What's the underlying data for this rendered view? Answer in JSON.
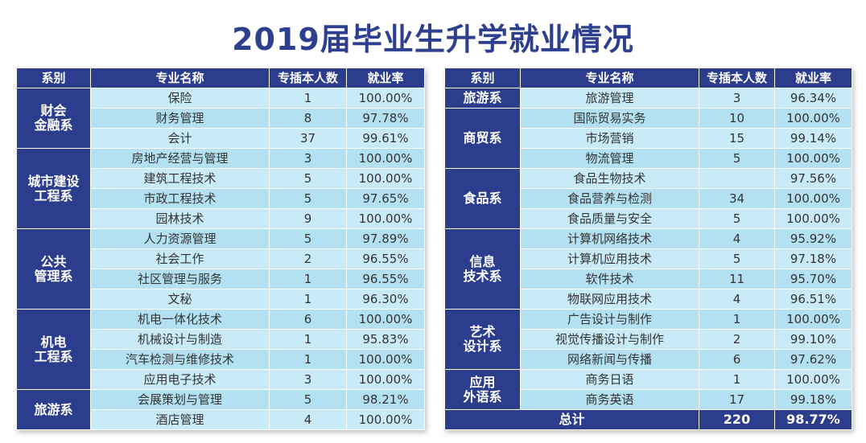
{
  "title": "2019届毕业生升学就业情况",
  "headers": [
    "系别",
    "专业名称",
    "专插本人数",
    "就业率"
  ],
  "left_table": [
    {
      "dept": "财会\n金融系",
      "rows": [
        [
          "保险",
          "1",
          "100.00%"
        ],
        [
          "财务管理",
          "8",
          "97.78%"
        ],
        [
          "会计",
          "37",
          "99.61%"
        ]
      ]
    },
    {
      "dept": "城市建设\n工程系",
      "rows": [
        [
          "房地产经营与管理",
          "3",
          "100.00%"
        ],
        [
          "建筑工程技术",
          "5",
          "100.00%"
        ],
        [
          "市政工程技术",
          "5",
          "97.65%"
        ],
        [
          "园林技术",
          "9",
          "100.00%"
        ]
      ]
    },
    {
      "dept": "公共\n管理系",
      "rows": [
        [
          "人力资源管理",
          "5",
          "97.89%"
        ],
        [
          "社会工作",
          "2",
          "96.55%"
        ],
        [
          "社区管理与服务",
          "1",
          "96.55%"
        ],
        [
          "文秘",
          "1",
          "96.30%"
        ]
      ]
    },
    {
      "dept": "机电\n工程系",
      "rows": [
        [
          "机电一体化技术",
          "6",
          "100.00%"
        ],
        [
          "机械设计与制造",
          "1",
          "95.83%"
        ],
        [
          "汽车检测与维修技术",
          "1",
          "100.00%"
        ],
        [
          "应用电子技术",
          "3",
          "100.00%"
        ]
      ]
    },
    {
      "dept": "旅游系",
      "rows": [
        [
          "会展策划与管理",
          "5",
          "98.21%"
        ],
        [
          "酒店管理",
          "4",
          "100.00%"
        ]
      ]
    }
  ],
  "right_table": [
    {
      "dept": "旅游系",
      "rows": [
        [
          "旅游管理",
          "3",
          "96.34%"
        ]
      ]
    },
    {
      "dept": "商贸系",
      "rows": [
        [
          "国际贸易实务",
          "10",
          "100.00%"
        ],
        [
          "市场营销",
          "15",
          "99.14%"
        ],
        [
          "物流管理",
          "5",
          "100.00%"
        ]
      ]
    },
    {
      "dept": "食品系",
      "rows": [
        [
          "食品生物技术",
          "",
          "97.56%"
        ],
        [
          "食品营养与检测",
          "34",
          "100.00%"
        ],
        [
          "食品质量与安全",
          "5",
          "100.00%"
        ]
      ]
    },
    {
      "dept": "信息\n技术系",
      "rows": [
        [
          "计算机网络技术",
          "4",
          "95.92%"
        ],
        [
          "计算机应用技术",
          "5",
          "97.18%"
        ],
        [
          "软件技术",
          "11",
          "95.70%"
        ],
        [
          "物联网应用技术",
          "4",
          "96.51%"
        ]
      ]
    },
    {
      "dept": "艺术\n设计系",
      "rows": [
        [
          "广告设计与制作",
          "1",
          "100.00%"
        ],
        [
          "视觉传播设计与制作",
          "2",
          "99.10%"
        ],
        [
          "网络新闻与传播",
          "6",
          "97.62%"
        ]
      ]
    },
    {
      "dept": "应用\n外语系",
      "rows": [
        [
          "商务日语",
          "1",
          "100.00%"
        ],
        [
          "商务英语",
          "17",
          "99.18%"
        ]
      ]
    }
  ],
  "total": {
    "label": "总计",
    "count": "220",
    "rate": "98.77%"
  }
}
